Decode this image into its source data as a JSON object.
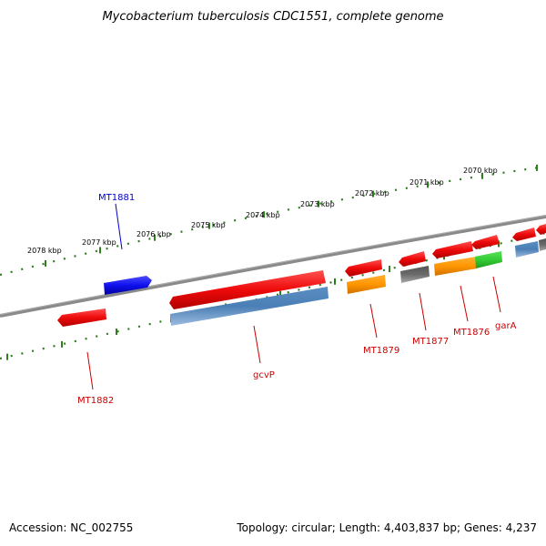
{
  "title": "Mycobacterium tuberculosis CDC1551, complete genome",
  "footer": {
    "accession": "Accession: NC_002755",
    "summary": "Topology: circular; Length: 4,403,837 bp; Genes: 4,237"
  },
  "ruler_labels": [
    "2078 kbp",
    "2077 kbp",
    "2076 kbp",
    "2075 kbp",
    "2074 kbp",
    "2073 kbp",
    "2072 kbp",
    "2071 kbp",
    "2070 kbp"
  ],
  "gene_labels": [
    {
      "text": "MT1881",
      "color": "#0000cc"
    },
    {
      "text": "MT1882",
      "color": "#cc0000"
    },
    {
      "text": "gcvP",
      "color": "#cc0000"
    },
    {
      "text": "MT1879",
      "color": "#cc0000"
    },
    {
      "text": "MT1877",
      "color": "#cc0000"
    },
    {
      "text": "MT1876",
      "color": "#cc0000"
    },
    {
      "text": "garA",
      "color": "#cc0000"
    }
  ],
  "colors": {
    "backbone": "#808080",
    "tick": "#2e7d1e",
    "cds_red": "#ee1111",
    "cds_blue": "#1414e6",
    "rna_steel": "#4a7fb5",
    "orange": "#ff9a00",
    "gray_feature": "#666666",
    "green": "#33cc33"
  }
}
